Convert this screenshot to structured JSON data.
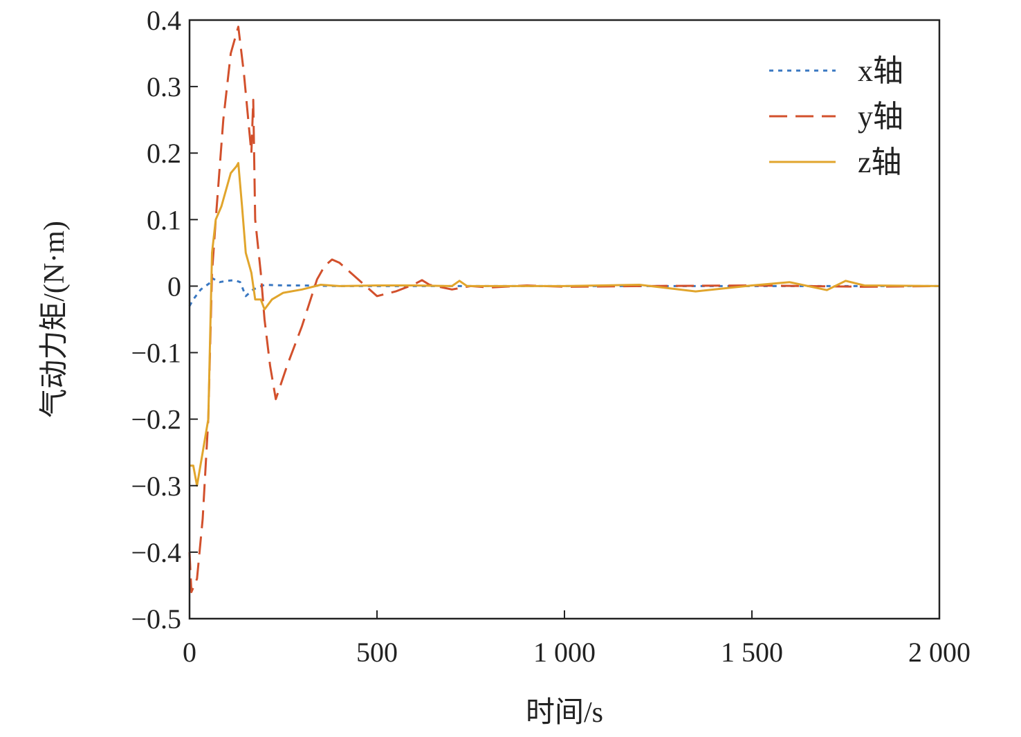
{
  "chart_data": {
    "type": "line",
    "title": "",
    "xlabel": "时间/s",
    "ylabel": "气动力矩/(N·m)",
    "xlim": [
      0,
      2000
    ],
    "ylim": [
      -0.5,
      0.4
    ],
    "x_ticks": [
      0,
      500,
      1000,
      1500,
      2000
    ],
    "x_tick_labels": [
      "0",
      "500",
      "1 000",
      "1 500",
      "2 000"
    ],
    "y_ticks": [
      0.4,
      0.3,
      0.2,
      0.1,
      0,
      -0.1,
      -0.2,
      -0.3,
      -0.4,
      -0.5
    ],
    "y_tick_labels": [
      "0.4",
      "0.3",
      "0.2",
      "0.1",
      "0",
      "−0.1",
      "−0.2",
      "−0.3",
      "−0.4",
      "−0.5"
    ],
    "grid": false,
    "legend_position": "top-right",
    "series": [
      {
        "name": "x轴",
        "style": "dotted",
        "color": "#3a78c2",
        "points": [
          [
            0,
            -0.03
          ],
          [
            10,
            -0.02
          ],
          [
            30,
            -0.005
          ],
          [
            55,
            0.005
          ],
          [
            60,
            0.012
          ],
          [
            80,
            0.006
          ],
          [
            100,
            0.008
          ],
          [
            120,
            0.009
          ],
          [
            135,
            0.006
          ],
          [
            150,
            -0.015
          ],
          [
            170,
            -0.005
          ],
          [
            200,
            0.002
          ],
          [
            250,
            0.001
          ],
          [
            300,
            0.001
          ],
          [
            400,
            0
          ],
          [
            2000,
            0
          ]
        ]
      },
      {
        "name": "y轴",
        "style": "dashed",
        "color": "#d2502c",
        "points": [
          [
            0,
            -0.4
          ],
          [
            5,
            -0.46
          ],
          [
            20,
            -0.44
          ],
          [
            35,
            -0.35
          ],
          [
            50,
            -0.2
          ],
          [
            60,
            0.02
          ],
          [
            70,
            0.1
          ],
          [
            90,
            0.25
          ],
          [
            110,
            0.35
          ],
          [
            130,
            0.39
          ],
          [
            145,
            0.32
          ],
          [
            165,
            0.2
          ],
          [
            170,
            0.28
          ],
          [
            175,
            0.1
          ],
          [
            190,
            0.02
          ],
          [
            200,
            -0.05
          ],
          [
            215,
            -0.12
          ],
          [
            230,
            -0.17
          ],
          [
            260,
            -0.12
          ],
          [
            300,
            -0.06
          ],
          [
            340,
            0.01
          ],
          [
            360,
            0.03
          ],
          [
            380,
            0.04
          ],
          [
            400,
            0.035
          ],
          [
            430,
            0.02
          ],
          [
            460,
            0.005
          ],
          [
            500,
            -0.015
          ],
          [
            550,
            -0.008
          ],
          [
            600,
            0.003
          ],
          [
            620,
            0.009
          ],
          [
            640,
            0.002
          ],
          [
            700,
            -0.005
          ],
          [
            750,
            0
          ],
          [
            800,
            -0.002
          ],
          [
            900,
            0.001
          ],
          [
            1000,
            -0.001
          ],
          [
            1200,
            0
          ],
          [
            1500,
            0.001
          ],
          [
            1800,
            -0.001
          ],
          [
            2000,
            0
          ]
        ]
      },
      {
        "name": "z轴",
        "style": "solid",
        "color": "#e1a52c",
        "points": [
          [
            0,
            -0.27
          ],
          [
            10,
            -0.27
          ],
          [
            20,
            -0.3
          ],
          [
            35,
            -0.25
          ],
          [
            50,
            -0.2
          ],
          [
            60,
            0.05
          ],
          [
            70,
            0.1
          ],
          [
            85,
            0.12
          ],
          [
            100,
            0.15
          ],
          [
            110,
            0.17
          ],
          [
            125,
            0.18
          ],
          [
            130,
            0.185
          ],
          [
            140,
            0.12
          ],
          [
            150,
            0.05
          ],
          [
            165,
            0.02
          ],
          [
            175,
            -0.02
          ],
          [
            190,
            -0.02
          ],
          [
            200,
            -0.035
          ],
          [
            220,
            -0.02
          ],
          [
            250,
            -0.01
          ],
          [
            300,
            -0.005
          ],
          [
            350,
            0.002
          ],
          [
            400,
            0
          ],
          [
            500,
            0.001
          ],
          [
            600,
            0.001
          ],
          [
            700,
            0
          ],
          [
            720,
            0.008
          ],
          [
            740,
            0
          ],
          [
            1000,
            0
          ],
          [
            1200,
            0.002
          ],
          [
            1350,
            -0.008
          ],
          [
            1500,
            0.001
          ],
          [
            1600,
            0.006
          ],
          [
            1700,
            -0.006
          ],
          [
            1750,
            0.008
          ],
          [
            1800,
            0.001
          ],
          [
            2000,
            0
          ]
        ]
      }
    ]
  }
}
